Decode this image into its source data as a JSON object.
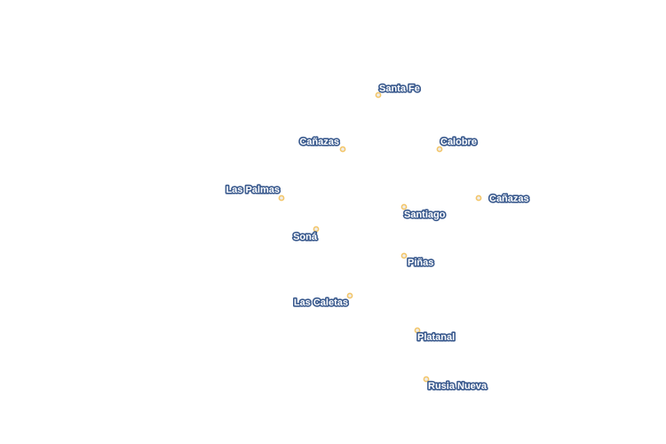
{
  "map": {
    "point_color": "#f3c66a",
    "label_halo_color": "#3a5a8e",
    "label_text_color": "#ffffff",
    "places": [
      {
        "name": "Santa Fe"
      },
      {
        "name": "Cañazas"
      },
      {
        "name": "Calobre"
      },
      {
        "name": "Las Palmas"
      },
      {
        "name": "Cañazas"
      },
      {
        "name": "Santiago"
      },
      {
        "name": "Soná"
      },
      {
        "name": "Piñas"
      },
      {
        "name": "Las Caletas"
      },
      {
        "name": "Platanal"
      },
      {
        "name": "Rusia Nueva"
      }
    ]
  }
}
